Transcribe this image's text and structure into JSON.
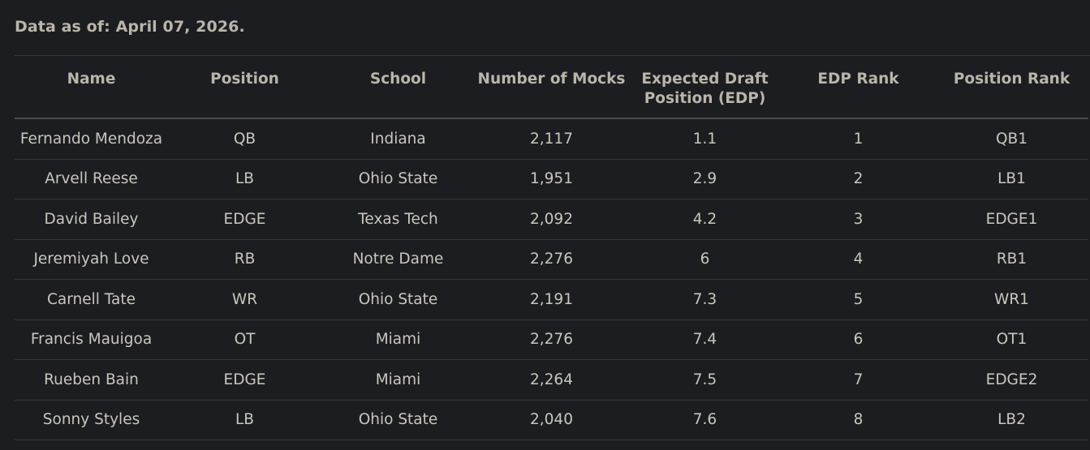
{
  "header": {
    "as_of": "Data as of: April 07, 2026."
  },
  "table": {
    "columns": [
      "Name",
      "Position",
      "School",
      "Number of Mocks",
      "Expected Draft Position (EDP)",
      "EDP Rank",
      "Position Rank"
    ],
    "rows": [
      [
        "Fernando Mendoza",
        "QB",
        "Indiana",
        "2,117",
        "1.1",
        "1",
        "QB1"
      ],
      [
        "Arvell Reese",
        "LB",
        "Ohio State",
        "1,951",
        "2.9",
        "2",
        "LB1"
      ],
      [
        "David Bailey",
        "EDGE",
        "Texas Tech",
        "2,092",
        "4.2",
        "3",
        "EDGE1"
      ],
      [
        "Jeremiyah Love",
        "RB",
        "Notre Dame",
        "2,276",
        "6",
        "4",
        "RB1"
      ],
      [
        "Carnell Tate",
        "WR",
        "Ohio State",
        "2,191",
        "7.3",
        "5",
        "WR1"
      ],
      [
        "Francis Mauigoa",
        "OT",
        "Miami",
        "2,276",
        "7.4",
        "6",
        "OT1"
      ],
      [
        "Rueben Bain",
        "EDGE",
        "Miami",
        "2,264",
        "7.5",
        "7",
        "EDGE2"
      ],
      [
        "Sonny Styles",
        "LB",
        "Ohio State",
        "2,040",
        "7.6",
        "8",
        "LB2"
      ]
    ]
  }
}
